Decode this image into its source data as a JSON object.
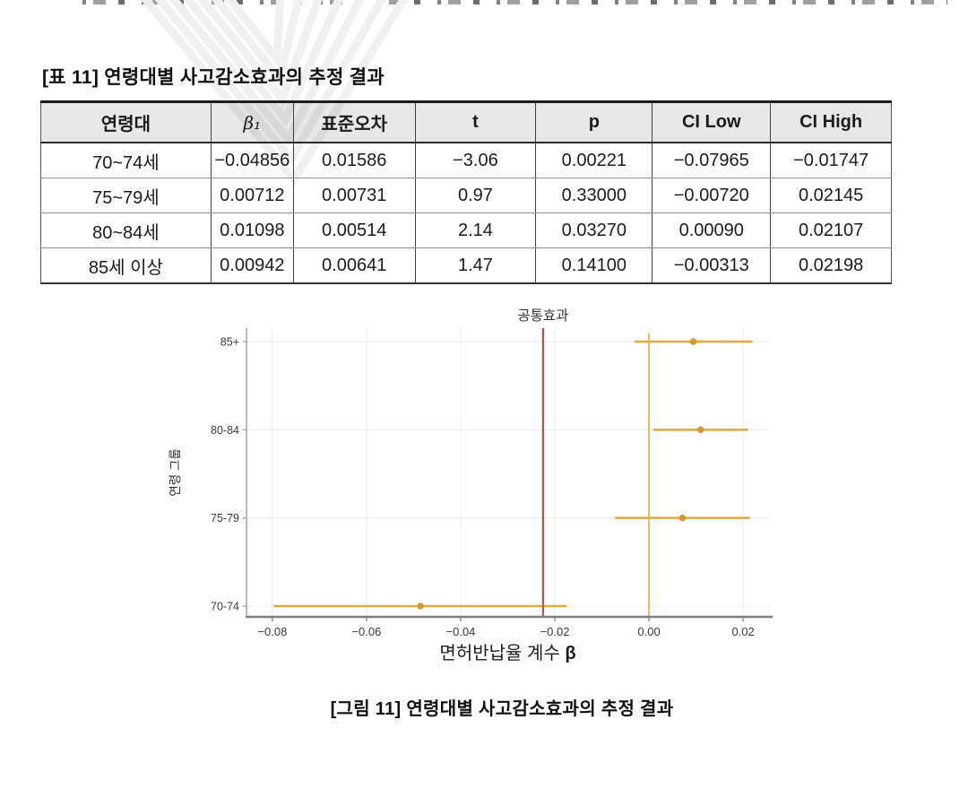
{
  "page": {
    "table_title": "[표 11] 연령대별 사고감소효과의 추정 결과",
    "figure_caption": "[그림 11] 연령대별 사고감소효과의 추정 결과"
  },
  "table": {
    "columns": [
      "연령대",
      "β₁",
      "표준오차",
      "t",
      "p",
      "CI Low",
      "CI High"
    ],
    "rows": [
      [
        "70~74세",
        "−0.04856",
        "0.01586",
        "−3.06",
        "0.00221",
        "−0.07965",
        "−0.01747"
      ],
      [
        "75~79세",
        "0.00712",
        "0.00731",
        "0.97",
        "0.33000",
        "−0.00720",
        "0.02145"
      ],
      [
        "80~84세",
        "0.01098",
        "0.00514",
        "2.14",
        "0.03270",
        "0.00090",
        "0.02107"
      ],
      [
        "85세 이상",
        "0.00942",
        "0.00641",
        "1.47",
        "0.14100",
        "−0.00313",
        "0.02198"
      ]
    ]
  },
  "chart_data": {
    "type": "scatter",
    "subtype": "forest-plot",
    "title": "공통효과",
    "xlabel": "면허반납율 계수 β",
    "ylabel": "연령 그룹",
    "categories": [
      "85+",
      "80-84",
      "75-79",
      "70-74"
    ],
    "points": [
      {
        "group": "85+",
        "beta": 0.00942,
        "ci_low": -0.00313,
        "ci_high": 0.02198
      },
      {
        "group": "80-84",
        "beta": 0.01098,
        "ci_low": 0.0009,
        "ci_high": 0.02107
      },
      {
        "group": "75-79",
        "beta": 0.00712,
        "ci_low": -0.0072,
        "ci_high": 0.02145
      },
      {
        "group": "70-74",
        "beta": -0.04856,
        "ci_low": -0.07965,
        "ci_high": -0.01747
      }
    ],
    "reference_lines": [
      {
        "name": "common-effect",
        "label": "공통효과",
        "x": -0.0225,
        "color": "#b5544b"
      },
      {
        "name": "zero",
        "label": "",
        "x": 0.0,
        "color": "#e5b04a"
      }
    ],
    "x_ticks": [
      -0.08,
      -0.06,
      -0.04,
      -0.02,
      0.0,
      0.02
    ],
    "xlim": [
      -0.0855,
      0.0255
    ],
    "grid": true,
    "legend": "none",
    "colors": {
      "marker": "#d29a35",
      "ci_line": "#e2a93f",
      "grid": "#ededed",
      "spine": "#8d8d8d",
      "tick_text": "#3a3a3a"
    }
  }
}
